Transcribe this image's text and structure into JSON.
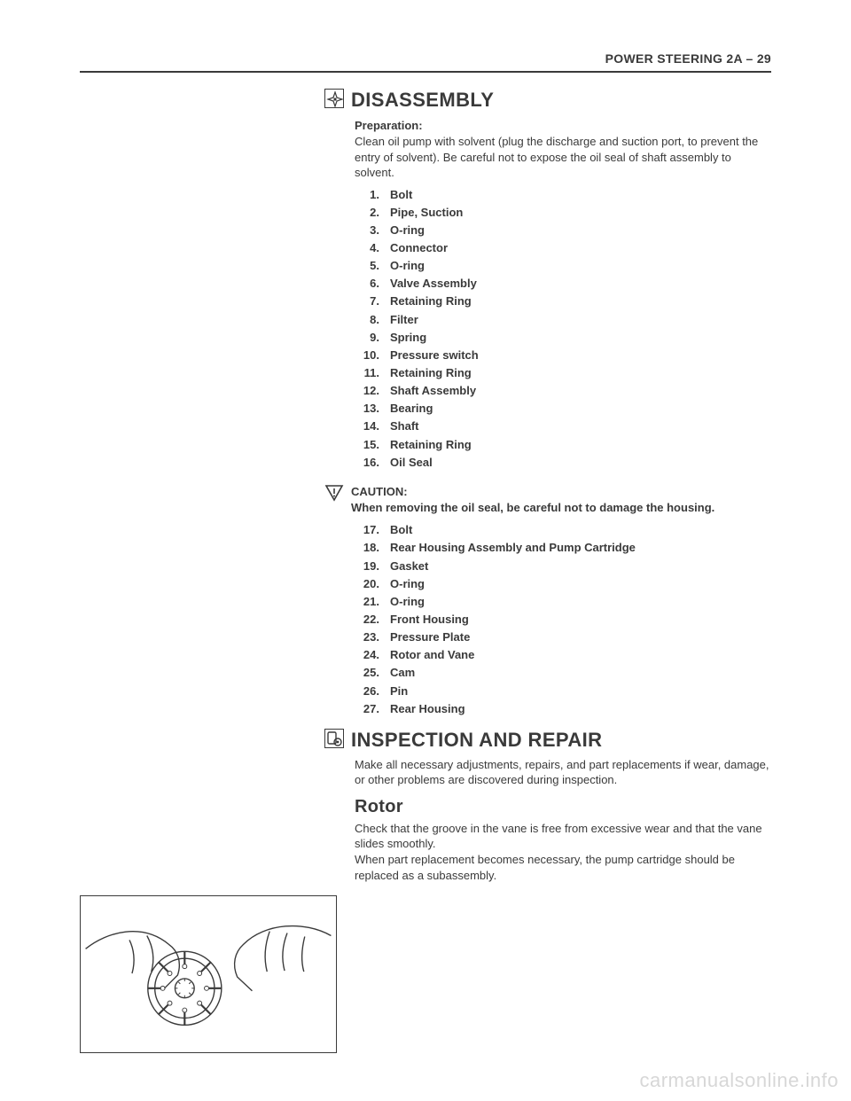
{
  "header": "POWER STEERING  2A – 29",
  "disassembly": {
    "title": "DISASSEMBLY",
    "prep_label": "Preparation:",
    "prep_text": "Clean oil pump with solvent (plug the discharge and suction port, to prevent the entry of solvent). Be careful not to expose the oil seal of shaft assembly to solvent.",
    "items1": [
      {
        "n": "1.",
        "t": "Bolt"
      },
      {
        "n": "2.",
        "t": "Pipe, Suction"
      },
      {
        "n": "3.",
        "t": "O-ring"
      },
      {
        "n": "4.",
        "t": "Connector"
      },
      {
        "n": "5.",
        "t": "O-ring"
      },
      {
        "n": "6.",
        "t": "Valve Assembly"
      },
      {
        "n": "7.",
        "t": "Retaining Ring"
      },
      {
        "n": "8.",
        "t": "Filter"
      },
      {
        "n": "9.",
        "t": "Spring"
      },
      {
        "n": "10.",
        "t": "Pressure switch"
      },
      {
        "n": "11.",
        "t": "Retaining Ring"
      },
      {
        "n": "12.",
        "t": "Shaft Assembly"
      },
      {
        "n": "13.",
        "t": "Bearing"
      },
      {
        "n": "14.",
        "t": "Shaft"
      },
      {
        "n": "15.",
        "t": "Retaining Ring"
      },
      {
        "n": "16.",
        "t": "Oil Seal"
      }
    ],
    "caution_label": "CAUTION:",
    "caution_text": "When removing the oil seal, be careful not to damage the housing.",
    "items2": [
      {
        "n": "17.",
        "t": "Bolt"
      },
      {
        "n": "18.",
        "t": "Rear Housing Assembly and Pump Cartridge"
      },
      {
        "n": "19.",
        "t": "Gasket"
      },
      {
        "n": "20.",
        "t": "O-ring"
      },
      {
        "n": "21.",
        "t": "O-ring"
      },
      {
        "n": "22.",
        "t": "Front Housing"
      },
      {
        "n": "23.",
        "t": "Pressure Plate"
      },
      {
        "n": "24.",
        "t": "Rotor and Vane"
      },
      {
        "n": "25.",
        "t": "Cam"
      },
      {
        "n": "26.",
        "t": "Pin"
      },
      {
        "n": "27.",
        "t": "Rear Housing"
      }
    ]
  },
  "inspection": {
    "title": "INSPECTION AND REPAIR",
    "text": "Make all necessary adjustments, repairs, and part replacements if wear, damage, or other problems are discovered during inspection."
  },
  "rotor": {
    "title": "Rotor",
    "text": "Check that the groove in the vane is free from excessive wear and that the vane slides smoothly.\nWhen part replacement becomes necessary, the pump cartridge should be replaced as a subassembly."
  },
  "watermark": "carmanualsonline.info",
  "colors": {
    "text": "#3a3a3a",
    "bg": "#ffffff",
    "watermark": "#d7d7d7"
  }
}
